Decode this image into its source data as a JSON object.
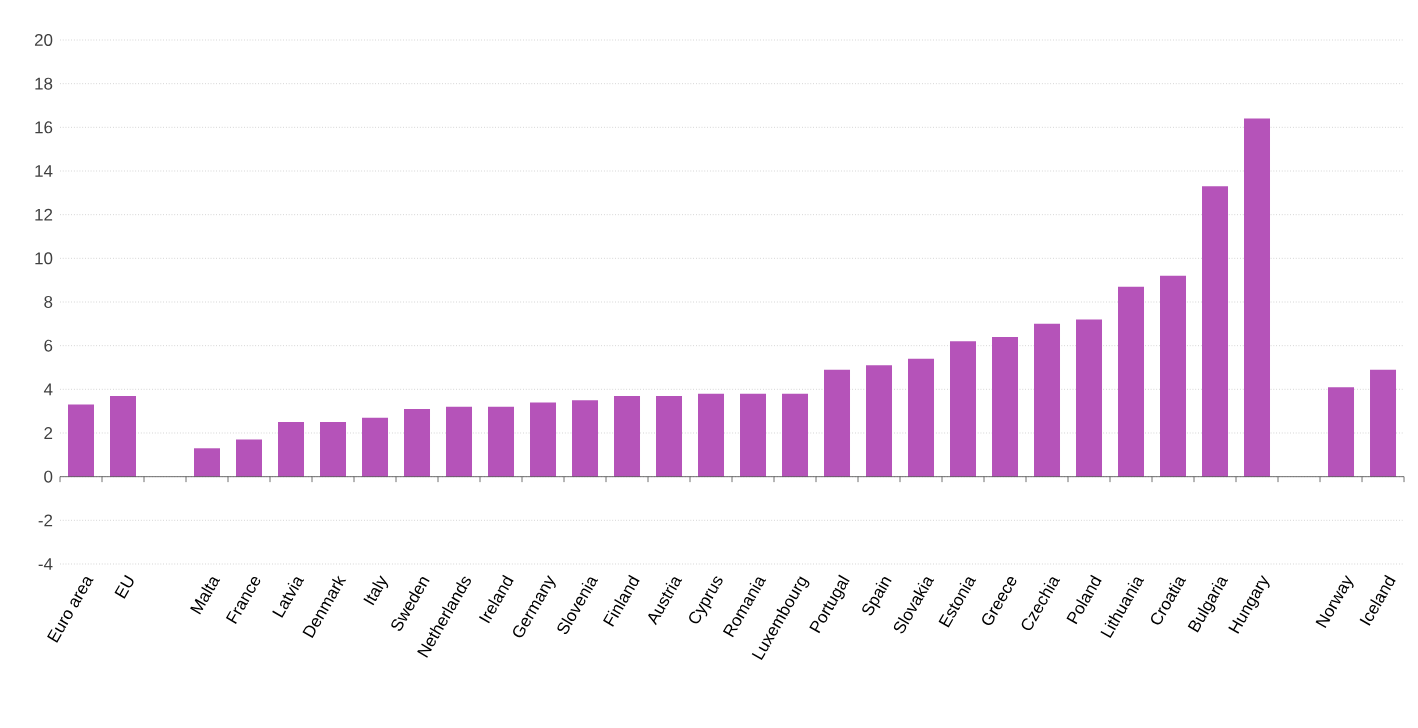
{
  "chart_data": {
    "type": "bar",
    "categories": [
      "Euro area",
      "EU",
      null,
      "Malta",
      "France",
      "Latvia",
      "Denmark",
      "Italy",
      "Sweden",
      "Netherlands",
      "Ireland",
      "Germany",
      "Slovenia",
      "Finland",
      "Austria",
      "Cyprus",
      "Romania",
      "Luxembourg",
      "Portugal",
      "Spain",
      "Slovakia",
      "Estonia",
      "Greece",
      "Czechia",
      "Poland",
      "Lithuania",
      "Croatia",
      "Bulgaria",
      "Hungary",
      null,
      "Norway",
      "Iceland"
    ],
    "values": [
      3.3,
      3.7,
      null,
      1.3,
      1.7,
      2.5,
      2.5,
      2.7,
      3.1,
      3.2,
      3.2,
      3.4,
      3.5,
      3.7,
      3.7,
      3.8,
      3.8,
      3.8,
      4.9,
      5.1,
      5.4,
      6.2,
      6.4,
      7.0,
      7.2,
      8.7,
      9.2,
      13.3,
      16.4,
      null,
      4.1,
      4.9
    ],
    "color": "#b553b9",
    "ylim": [
      -4,
      20
    ],
    "yticks": [
      -4,
      -2,
      0,
      2,
      4,
      6,
      8,
      10,
      12,
      14,
      16,
      18,
      20
    ],
    "grid": "y"
  }
}
